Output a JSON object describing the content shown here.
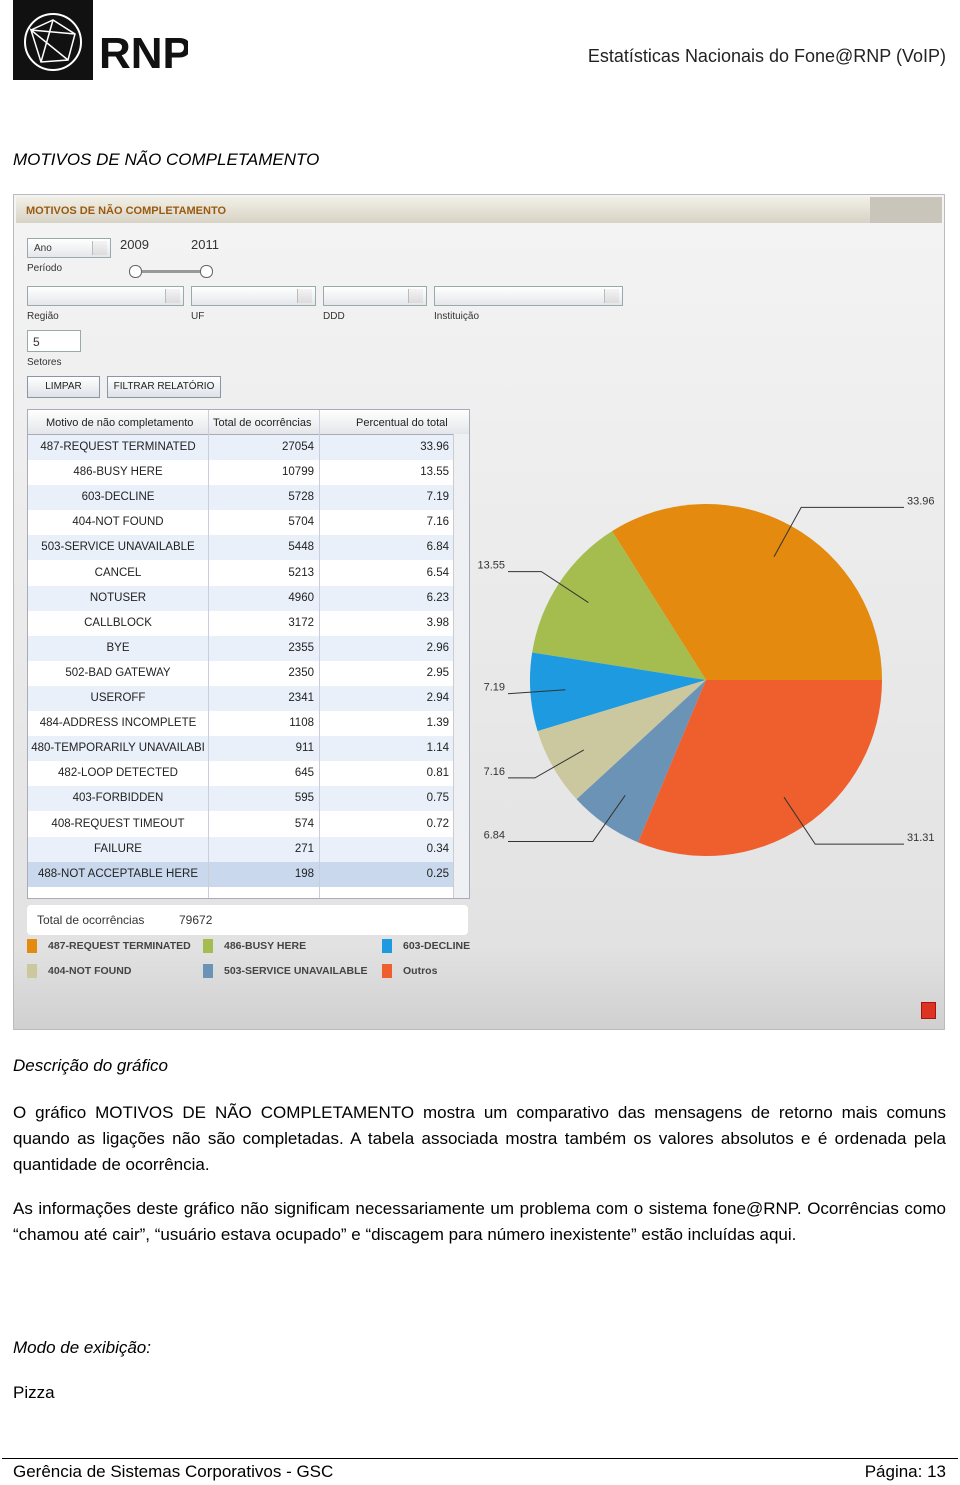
{
  "header": {
    "logo": "RNP",
    "title": "Estatísticas Nacionais do Fone@RNP (VoIP)"
  },
  "section_title": "MOTIVOS DE NÃO COMPLETAMENTO",
  "window": {
    "title": "MOTIVOS DE NÃO COMPLETAMENTO",
    "period_select": "Ano",
    "period_label": "Período",
    "slider_labels": [
      "2009",
      "2011"
    ],
    "filters": [
      "Região",
      "UF",
      "DDD",
      "Instituição"
    ],
    "sectors_value": "5",
    "sectors_label": "Setores",
    "buttons": [
      "LIMPAR",
      "FILTRAR RELATÓRIO"
    ]
  },
  "table": {
    "headers": [
      "Motivo de não completamento",
      "Total de ocorrências",
      "Percentual do total"
    ],
    "rows": [
      [
        "487-REQUEST TERMINATED",
        27054,
        33.96
      ],
      [
        "486-BUSY HERE",
        10799,
        13.55
      ],
      [
        "603-DECLINE",
        5728,
        7.19
      ],
      [
        "404-NOT FOUND",
        5704,
        7.16
      ],
      [
        "503-SERVICE UNAVAILABLE",
        5448,
        6.84
      ],
      [
        "CANCEL",
        5213,
        6.54
      ],
      [
        "NOTUSER",
        4960,
        6.23
      ],
      [
        "CALLBLOCK",
        3172,
        3.98
      ],
      [
        "BYE",
        2355,
        2.96
      ],
      [
        "502-BAD GATEWAY",
        2350,
        2.95
      ],
      [
        "USEROFF",
        2341,
        2.94
      ],
      [
        "484-ADDRESS INCOMPLETE",
        1108,
        1.39
      ],
      [
        "480-TEMPORARILY UNAVAILABI",
        911,
        1.14
      ],
      [
        "482-LOOP DETECTED",
        645,
        0.81
      ],
      [
        "403-FORBIDDEN",
        595,
        0.75
      ],
      [
        "408-REQUEST TIMEOUT",
        574,
        0.72
      ],
      [
        "FAILURE",
        271,
        0.34
      ],
      [
        "488-NOT ACCEPTABLE HERE",
        198,
        0.25
      ]
    ],
    "total_label": "Total de ocorrências",
    "total": 79672
  },
  "chart_data": {
    "type": "pie",
    "categories": [
      "487-REQUEST TERMINATED",
      "486-BUSY HERE",
      "603-DECLINE",
      "404-NOT FOUND",
      "503-SERVICE UNAVAILABLE",
      "Outros"
    ],
    "values": [
      33.96,
      13.55,
      7.19,
      7.16,
      6.84,
      31.31
    ],
    "colors": [
      "#e38a0f",
      "#a4bd4e",
      "#1e9be0",
      "#cbc8a0",
      "#6b93b5",
      "#ee5f2d"
    ]
  },
  "description": {
    "heading": "Descrição do gráfico",
    "paragraphs": [
      "O gráfico MOTIVOS DE NÃO COMPLETAMENTO mostra um comparativo das mensagens de retorno mais comuns quando as ligações não são completadas. A tabela associada mostra também os valores absolutos e é ordenada pela quantidade de ocorrência.",
      "As informações deste gráfico não significam necessariamente um problema com o sistema fone@RNP. Ocorrências como “chamou até cair”, “usuário estava ocupado” e “discagem para número inexistente” estão incluídas aqui."
    ],
    "mode_label": "Modo de exibição:",
    "mode_value": "Pizza"
  },
  "footer": {
    "left": "Gerência de Sistemas Corporativos - GSC",
    "right": "Página: 13"
  }
}
